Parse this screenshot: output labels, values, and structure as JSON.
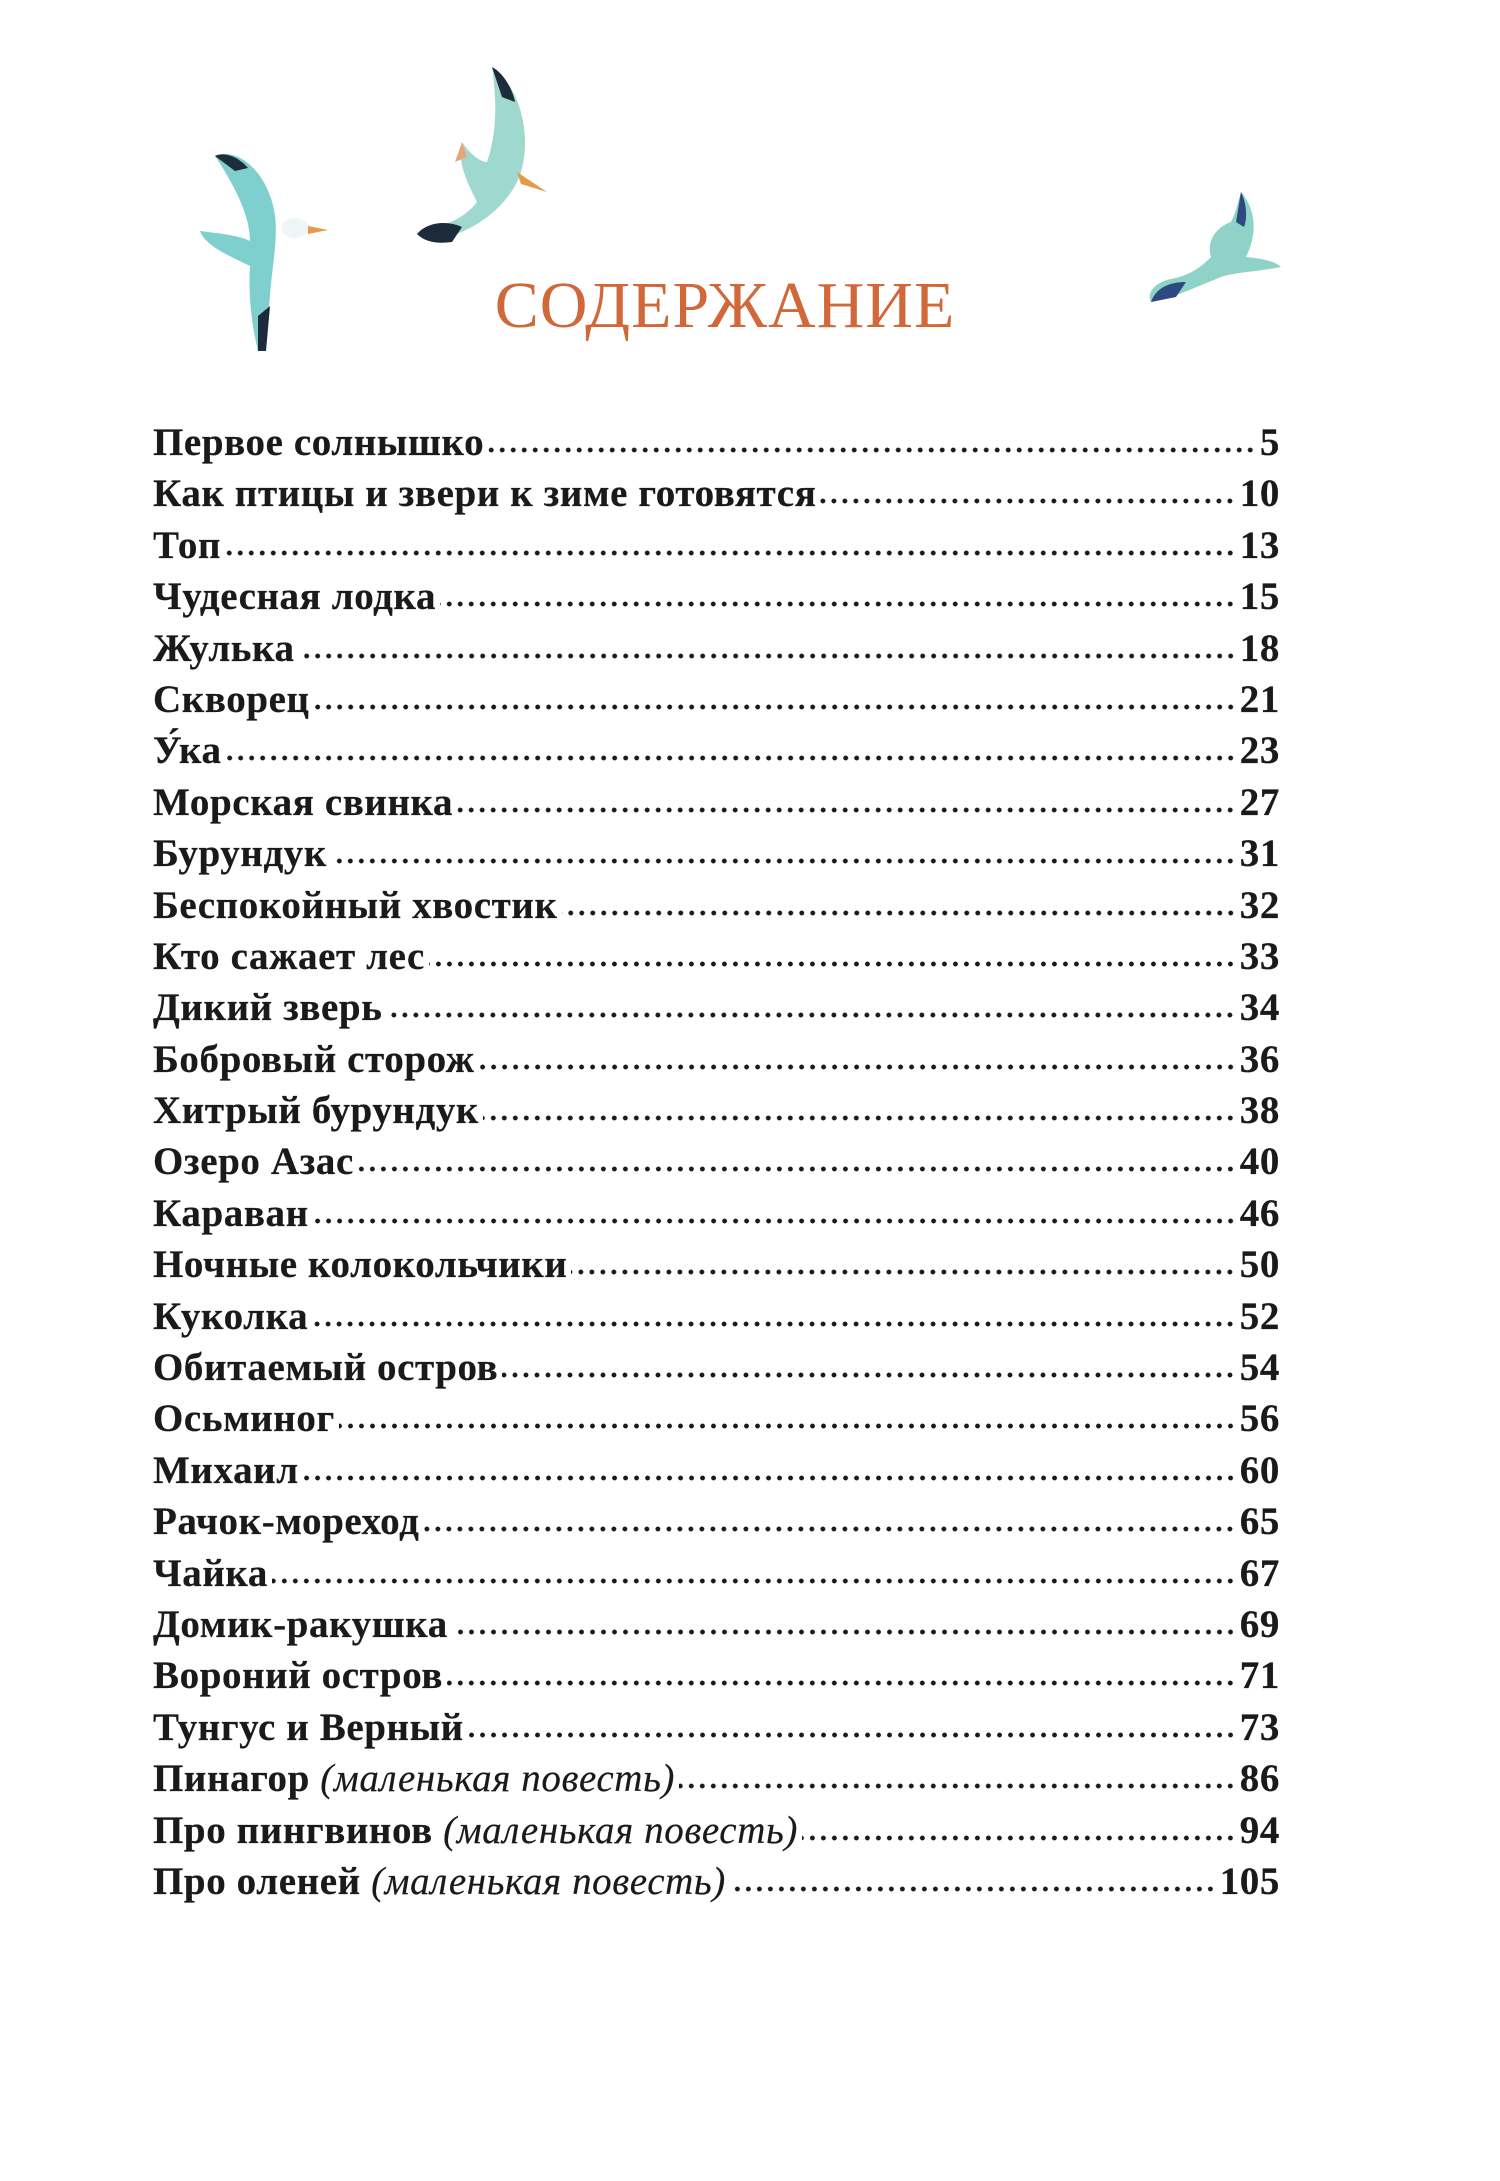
{
  "title": "СОДЕРЖАНИЕ",
  "colors": {
    "title": "#d0683a",
    "text": "#1a1a1a",
    "bird_body": "#7fcfcf",
    "bird_wingtip": "#1d2b3a"
  },
  "illustrations": [
    "seagull-left",
    "seagull-center",
    "seagull-right"
  ],
  "entries": [
    {
      "title": "Первое солнышко",
      "page": "5"
    },
    {
      "title": "Как птицы и звери к зиме готовятся",
      "page": "10"
    },
    {
      "title": "Топ",
      "page": "13"
    },
    {
      "title": "Чудесная лодка",
      "page": "15"
    },
    {
      "title": "Жулька",
      "page": "18"
    },
    {
      "title": "Скворец",
      "page": "21"
    },
    {
      "title": "У́ка",
      "page": "23"
    },
    {
      "title": "Морская свинка",
      "page": "27"
    },
    {
      "title": "Бурундук",
      "page": "31"
    },
    {
      "title": "Беспокойный хвостик",
      "page": "32"
    },
    {
      "title": "Кто сажает лес",
      "page": "33"
    },
    {
      "title": "Дикий зверь",
      "page": "34"
    },
    {
      "title": "Бобровый сторож",
      "page": "36"
    },
    {
      "title": "Хитрый бурундук",
      "page": "38"
    },
    {
      "title": "Озеро Азас",
      "page": "40"
    },
    {
      "title": "Караван",
      "page": "46"
    },
    {
      "title": "Ночные колокольчики",
      "page": "50"
    },
    {
      "title": "Куколка",
      "page": "52"
    },
    {
      "title": "Обитаемый остров",
      "page": "54"
    },
    {
      "title": "Осьминог",
      "page": "56"
    },
    {
      "title": "Михаил",
      "page": "60"
    },
    {
      "title": "Рачок-мореход",
      "page": "65"
    },
    {
      "title": "Чайка",
      "page": "67"
    },
    {
      "title": "Домик-ракушка",
      "page": "69"
    },
    {
      "title": "Вороний остров",
      "page": "71"
    },
    {
      "title": "Тунгус и Верный",
      "page": "73"
    },
    {
      "title": "Пинагор",
      "note": "(маленькая повесть)",
      "page": "86"
    },
    {
      "title": "Про пингвинов",
      "note": "(маленькая повесть)",
      "page": "94"
    },
    {
      "title": "Про оленей",
      "note": "(маленькая повесть)",
      "page": "105"
    }
  ]
}
